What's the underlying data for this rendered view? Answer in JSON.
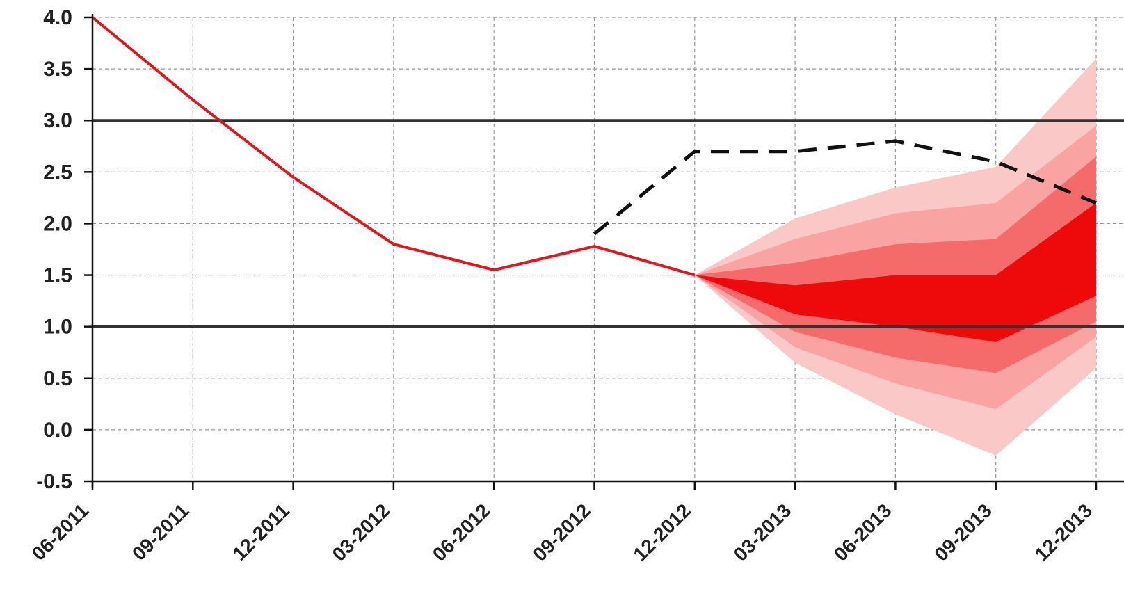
{
  "chart_data": {
    "type": "line",
    "title": "",
    "xlabel": "",
    "ylabel": "",
    "categories": [
      "06-2011",
      "09-2011",
      "12-2011",
      "03-2012",
      "06-2012",
      "09-2012",
      "12-2012",
      "03-2013",
      "06-2013",
      "09-2013",
      "12-2013"
    ],
    "ylim": [
      -0.5,
      4.0
    ],
    "yticks": [
      "4.0",
      "3.5",
      "3.0",
      "2.5",
      "2.0",
      "1.5",
      "1.0",
      "0.5",
      "0.0",
      "-0.5"
    ],
    "ytick_values": [
      4.0,
      3.5,
      3.0,
      2.5,
      2.0,
      1.5,
      1.0,
      0.5,
      0.0,
      -0.5
    ],
    "grid": true,
    "reference_lines": [
      3.0,
      1.0
    ],
    "series": [
      {
        "style": "solid",
        "color": "#e8141c",
        "x": [
          "06-2011",
          "09-2011",
          "12-2011",
          "03-2012",
          "06-2012",
          "09-2012",
          "12-2012"
        ],
        "values": [
          4.0,
          3.2,
          2.45,
          1.8,
          1.55,
          1.78,
          1.5
        ]
      },
      {
        "style": "dashed",
        "color": "#111111",
        "x": [
          "09-2012",
          "12-2012",
          "03-2013",
          "06-2013",
          "09-2013",
          "12-2013"
        ],
        "values": [
          1.9,
          2.7,
          2.7,
          2.8,
          2.6,
          2.2
        ]
      }
    ],
    "fan": {
      "x": [
        "12-2012",
        "03-2013",
        "06-2013",
        "09-2013",
        "12-2013"
      ],
      "bands": [
        {
          "color": "#fbc8c8",
          "upper": [
            1.5,
            2.05,
            2.35,
            2.55,
            3.6
          ],
          "lower": [
            1.5,
            0.65,
            0.15,
            -0.25,
            0.6
          ]
        },
        {
          "color": "#f9a3a3",
          "upper": [
            1.5,
            1.85,
            2.1,
            2.2,
            2.95
          ],
          "lower": [
            1.5,
            0.8,
            0.45,
            0.2,
            0.9
          ]
        },
        {
          "color": "#f56a6a",
          "upper": [
            1.5,
            1.62,
            1.8,
            1.85,
            2.65
          ],
          "lower": [
            1.5,
            0.95,
            0.7,
            0.55,
            1.05
          ]
        },
        {
          "color": "#ee0a0a",
          "upper": [
            1.5,
            1.4,
            1.5,
            1.5,
            2.2
          ],
          "lower": [
            1.5,
            1.12,
            1.0,
            0.85,
            1.3
          ]
        }
      ]
    }
  }
}
